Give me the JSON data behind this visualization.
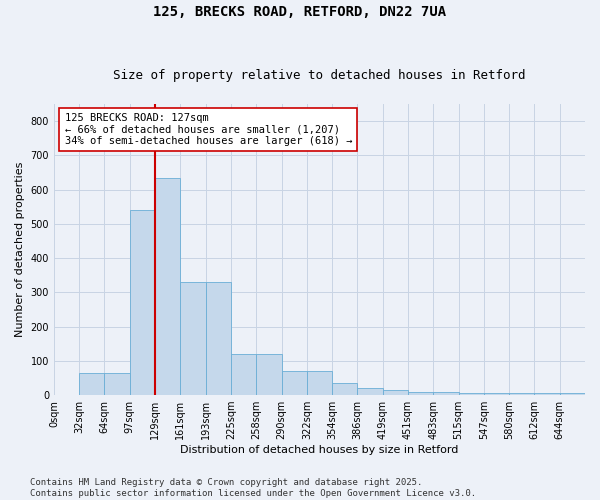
{
  "title": "125, BRECKS ROAD, RETFORD, DN22 7UA",
  "subtitle": "Size of property relative to detached houses in Retford",
  "xlabel": "Distribution of detached houses by size in Retford",
  "ylabel": "Number of detached properties",
  "footer": "Contains HM Land Registry data © Crown copyright and database right 2025.\nContains public sector information licensed under the Open Government Licence v3.0.",
  "bin_labels": [
    "0sqm",
    "32sqm",
    "64sqm",
    "97sqm",
    "129sqm",
    "161sqm",
    "193sqm",
    "225sqm",
    "258sqm",
    "290sqm",
    "322sqm",
    "354sqm",
    "386sqm",
    "419sqm",
    "451sqm",
    "483sqm",
    "515sqm",
    "547sqm",
    "580sqm",
    "612sqm",
    "644sqm"
  ],
  "bar_heights": [
    0,
    65,
    65,
    540,
    635,
    330,
    330,
    120,
    120,
    70,
    70,
    35,
    20,
    15,
    10,
    10,
    5,
    5,
    5,
    5,
    5
  ],
  "bar_color": "#c5d8eb",
  "bar_edge_color": "#6aaed6",
  "grid_color": "#c8d4e4",
  "bg_color": "#edf1f8",
  "property_line_bin_index": 4,
  "property_line_color": "#cc0000",
  "annotation_text": "125 BRECKS ROAD: 127sqm\n← 66% of detached houses are smaller (1,207)\n34% of semi-detached houses are larger (618) →",
  "annotation_box_color": "#ffffff",
  "annotation_border_color": "#cc0000",
  "ylim": [
    0,
    850
  ],
  "yticks": [
    0,
    100,
    200,
    300,
    400,
    500,
    600,
    700,
    800
  ],
  "title_fontsize": 10,
  "subtitle_fontsize": 9,
  "axis_label_fontsize": 8,
  "tick_fontsize": 7,
  "annotation_fontsize": 7.5,
  "footer_fontsize": 6.5
}
